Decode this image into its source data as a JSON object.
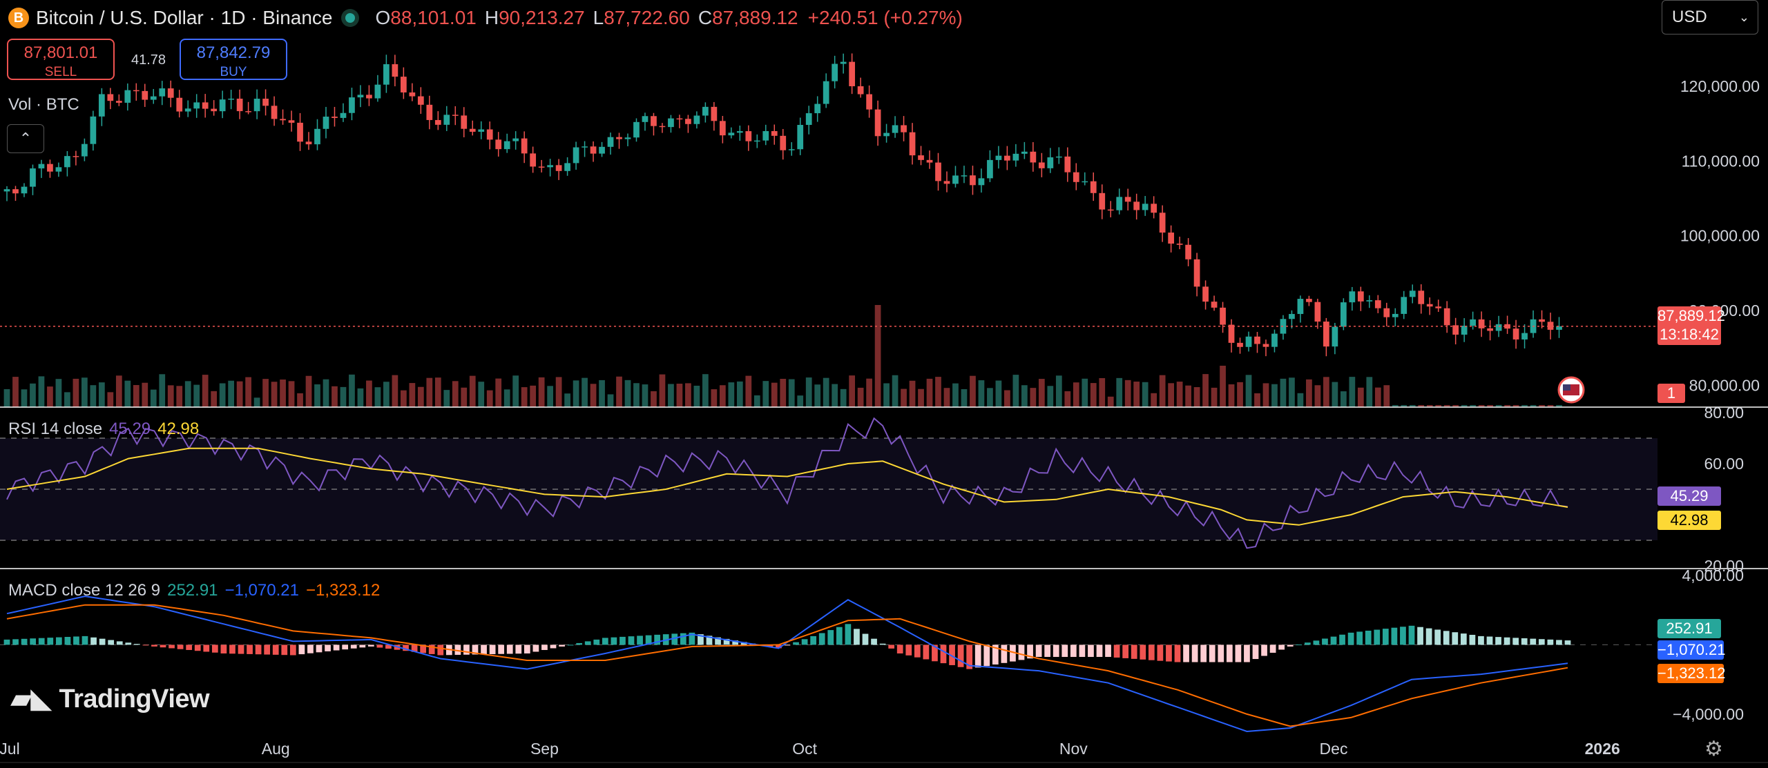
{
  "header": {
    "coin_icon": "B",
    "symbol": "Bitcoin / U.S. Dollar · 1D · Binance",
    "open_label": "O",
    "open": "88,101.01",
    "high_label": "H",
    "high": "90,213.27",
    "low_label": "L",
    "low": "87,722.60",
    "close_label": "C",
    "close": "87,889.12",
    "change": "+240.51 (+0.27%)"
  },
  "trade": {
    "sell_price": "87,801.01",
    "sell_label": "SELL",
    "spread": "41.78",
    "buy_price": "87,842.79",
    "buy_label": "BUY"
  },
  "volume_label": "Vol · BTC",
  "collapse_icon": "chevron-up-icon",
  "currency": "USD",
  "price_axis": [
    "120,000.00",
    "110,000.00",
    "100,000.00",
    "90,000.00",
    "80,000.00"
  ],
  "last_price": {
    "value": "87,889.12",
    "countdown": "13:18:42"
  },
  "alert_badge": "1",
  "rsi": {
    "label": "RSI 14 close",
    "rsi_value": "45.29",
    "ma_value": "42.98",
    "axis": [
      "80.00",
      "60.00",
      "20.00"
    ]
  },
  "macd": {
    "label": "MACD close 12 26 9",
    "hist_value": "252.91",
    "macd_value": "−1,070.21",
    "signal_value": "−1,323.12",
    "axis": [
      "4,000.00",
      "−4,000.00"
    ]
  },
  "x_axis": [
    "Jul",
    "Aug",
    "Sep",
    "Oct",
    "Nov",
    "Dec",
    "2026"
  ],
  "brand": "TradingView",
  "colors": {
    "up": "#26a69a",
    "down": "#ef5350",
    "rsi": "#7e57c2",
    "rsi_ma": "#fdd835",
    "macd": "#2962ff",
    "signal": "#ff6d00"
  },
  "chart_data": [
    {
      "type": "candlestick",
      "title": "Bitcoin / U.S. Dollar · 1D · Binance",
      "x_range": [
        "2025-07-01",
        "2025-12-28"
      ],
      "ylim": [
        78000,
        126000
      ],
      "y_scale": "linear",
      "grid": false,
      "close_series": {
        "dates": [
          "2025-07-01",
          "2025-07-05",
          "2025-07-09",
          "2025-07-12",
          "2025-07-15",
          "2025-07-20",
          "2025-07-25",
          "2025-07-30",
          "2025-08-04",
          "2025-08-09",
          "2025-08-14",
          "2025-08-18",
          "2025-08-23",
          "2025-08-28",
          "2025-09-01",
          "2025-09-05",
          "2025-09-10",
          "2025-09-15",
          "2025-09-20",
          "2025-09-25",
          "2025-09-30",
          "2025-10-03",
          "2025-10-06",
          "2025-10-10",
          "2025-10-13",
          "2025-10-17",
          "2025-10-21",
          "2025-10-26",
          "2025-10-30",
          "2025-11-03",
          "2025-11-06",
          "2025-11-10",
          "2025-11-13",
          "2025-11-17",
          "2025-11-21",
          "2025-11-25",
          "2025-11-28",
          "2025-12-01",
          "2025-12-04",
          "2025-12-07",
          "2025-12-11",
          "2025-12-15",
          "2025-12-19",
          "2025-12-23",
          "2025-12-26",
          "2025-12-28"
        ],
        "close": [
          106000,
          108500,
          111000,
          117500,
          119500,
          118000,
          117000,
          118000,
          113000,
          116500,
          122000,
          117000,
          114500,
          112500,
          109000,
          110500,
          113500,
          115500,
          115800,
          113000,
          112500,
          118000,
          124000,
          113500,
          114000,
          107000,
          108000,
          111000,
          110000,
          107000,
          103500,
          104500,
          99500,
          92000,
          84500,
          87000,
          91500,
          86500,
          92500,
          89500,
          92000,
          88500,
          87500,
          87500,
          87800,
          87889
        ]
      },
      "last_price": 87889.12
    },
    {
      "type": "bar",
      "title": "Vol · BTC",
      "note": "volume histogram, spike around Oct 10"
    },
    {
      "type": "line",
      "title": "RSI 14 close",
      "ylim": [
        20,
        80
      ],
      "bands": [
        70,
        50,
        30
      ],
      "dates": [
        "2025-07-01",
        "2025-07-10",
        "2025-07-15",
        "2025-07-22",
        "2025-07-30",
        "2025-08-05",
        "2025-08-12",
        "2025-08-18",
        "2025-08-25",
        "2025-09-01",
        "2025-09-08",
        "2025-09-15",
        "2025-09-22",
        "2025-09-29",
        "2025-10-06",
        "2025-10-10",
        "2025-10-17",
        "2025-10-24",
        "2025-10-30",
        "2025-11-05",
        "2025-11-12",
        "2025-11-18",
        "2025-11-21",
        "2025-11-27",
        "2025-12-03",
        "2025-12-09",
        "2025-12-15",
        "2025-12-21",
        "2025-12-28"
      ],
      "series": [
        {
          "name": "RSI",
          "values": [
            50,
            60,
            72,
            70,
            64,
            52,
            62,
            53,
            48,
            42,
            50,
            60,
            62,
            48,
            72,
            75,
            48,
            47,
            62,
            55,
            44,
            36,
            28,
            42,
            55,
            57,
            45,
            46,
            45.29
          ]
        },
        {
          "name": "MA",
          "values": [
            50,
            55,
            62,
            66,
            66,
            62,
            58,
            56,
            52,
            48,
            47,
            50,
            56,
            55,
            60,
            61,
            52,
            45,
            46,
            50,
            47,
            42,
            38,
            36,
            40,
            47,
            49,
            47,
            42.98
          ]
        }
      ]
    },
    {
      "type": "line",
      "title": "MACD close 12 26 9",
      "ylim": [
        -5000,
        4000
      ],
      "dates": [
        "2025-07-01",
        "2025-07-10",
        "2025-07-18",
        "2025-07-26",
        "2025-08-03",
        "2025-08-12",
        "2025-08-20",
        "2025-08-30",
        "2025-09-08",
        "2025-09-18",
        "2025-09-28",
        "2025-10-06",
        "2025-10-12",
        "2025-10-20",
        "2025-10-28",
        "2025-11-05",
        "2025-11-13",
        "2025-11-21",
        "2025-11-26",
        "2025-12-03",
        "2025-12-10",
        "2025-12-18",
        "2025-12-28"
      ],
      "series": [
        {
          "name": "MACD",
          "values": [
            1800,
            2800,
            2200,
            1200,
            200,
            300,
            -800,
            -1400,
            -500,
            600,
            -200,
            2600,
            1000,
            -1200,
            -1500,
            -2200,
            -3600,
            -5000,
            -4800,
            -3500,
            -2000,
            -1700,
            -1070.21
          ]
        },
        {
          "name": "Signal",
          "values": [
            1500,
            2300,
            2300,
            1700,
            800,
            400,
            -200,
            -900,
            -900,
            -100,
            0,
            1400,
            1500,
            200,
            -800,
            -1500,
            -2600,
            -4000,
            -4700,
            -4200,
            -3100,
            -2200,
            -1323.12
          ]
        },
        {
          "name": "Histogram",
          "values": [
            300,
            500,
            -100,
            -500,
            -600,
            -100,
            -600,
            -500,
            400,
            700,
            -200,
            1200,
            -500,
            -1400,
            -700,
            -700,
            -1000,
            -1000,
            -100,
            700,
            1100,
            500,
            252.91
          ]
        }
      ]
    }
  ]
}
